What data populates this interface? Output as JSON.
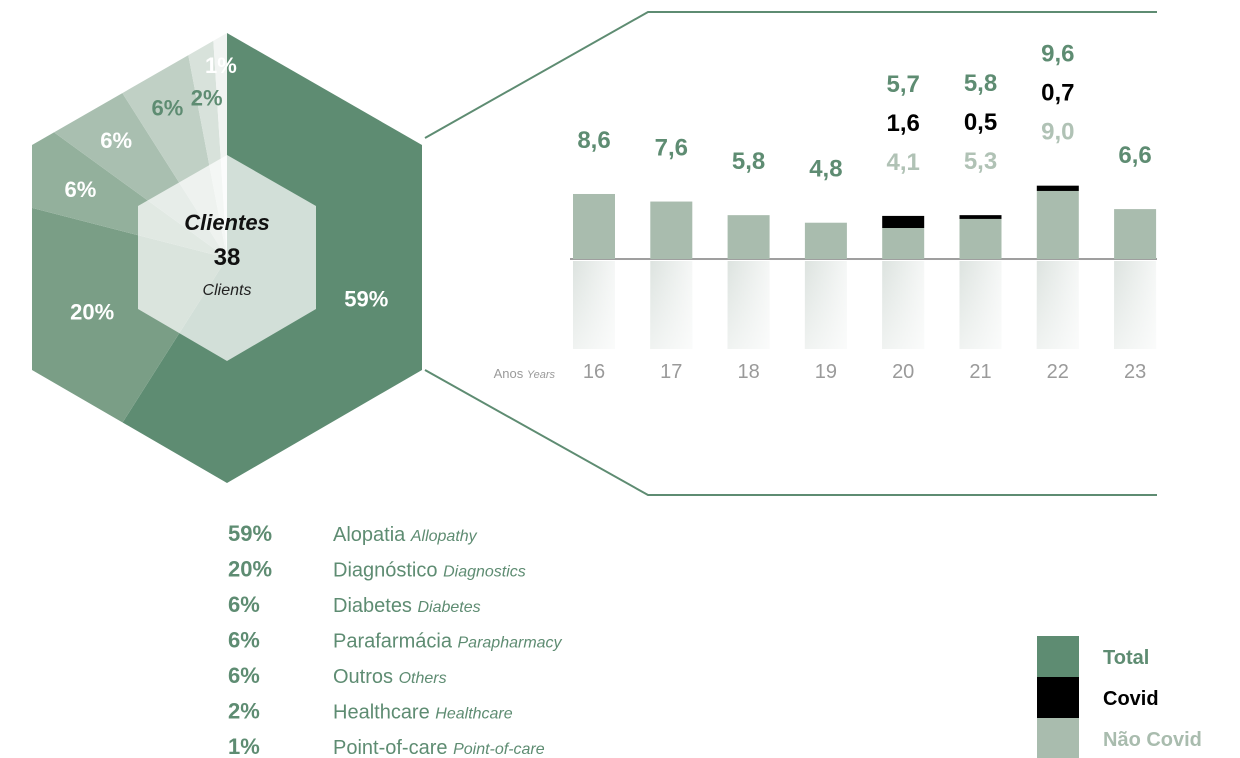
{
  "chart_data": [
    {
      "type": "pie",
      "title": "Clientes",
      "title_en": "Clients",
      "center_value": 38,
      "categories": [
        "Alopatia",
        "Diagnóstico",
        "Diabetes",
        "Parafarmácia",
        "Outros",
        "Healthcare",
        "Point-of-care"
      ],
      "categories_en": [
        "Allopathy",
        "Diagnostics",
        "Diabetes",
        "Parapharmacy",
        "Others",
        "Healthcare",
        "Point-of-care"
      ],
      "values": [
        59,
        20,
        6,
        6,
        6,
        2,
        1
      ],
      "value_labels": [
        "59%",
        "20%",
        "6%",
        "6%",
        "6%",
        "2%",
        "1%"
      ],
      "colors": [
        "#5e8c72",
        "#7a9e86",
        "#93b09c",
        "#a9bfb0",
        "#c0d0c5",
        "#d8e2db",
        "#f1f4f2"
      ]
    },
    {
      "type": "bar",
      "stacked": true,
      "categories": [
        "16",
        "17",
        "18",
        "19",
        "20",
        "21",
        "22",
        "23"
      ],
      "x_label": "Anos",
      "x_label_en": "Years",
      "ylim": [
        0,
        10
      ],
      "series": [
        {
          "name": "Total",
          "color": "#5e8c72",
          "values": [
            8.6,
            7.6,
            5.8,
            4.8,
            5.7,
            5.8,
            9.6,
            6.6
          ],
          "value_labels": [
            "8,6",
            "7,6",
            "5,8",
            "4,8",
            "5,7",
            "5,8",
            "9,6",
            "6,6"
          ]
        },
        {
          "name": "Covid",
          "color": "#000000",
          "values": [
            null,
            null,
            null,
            null,
            1.6,
            0.5,
            0.7,
            null
          ],
          "value_labels": [
            null,
            null,
            null,
            null,
            "1,6",
            "0,5",
            "0,7",
            null
          ]
        },
        {
          "name": "Não Covid",
          "color": "#a9bcae",
          "values": [
            8.6,
            7.6,
            5.8,
            4.8,
            4.1,
            5.3,
            9.0,
            6.6
          ],
          "value_labels": [
            null,
            null,
            null,
            null,
            "4,1",
            "5,3",
            "9,0",
            null
          ]
        }
      ]
    }
  ]
}
